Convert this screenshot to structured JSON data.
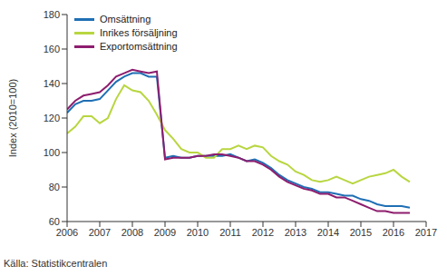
{
  "chart_data": {
    "type": "line",
    "y_label": "Index (2010=100)",
    "source": "Källa: Statistikcentralen",
    "x": [
      2006.0,
      2006.25,
      2006.5,
      2006.75,
      2007.0,
      2007.25,
      2007.5,
      2007.75,
      2008.0,
      2008.25,
      2008.5,
      2008.75,
      2009.0,
      2009.25,
      2009.5,
      2009.75,
      2010.0,
      2010.25,
      2010.5,
      2010.75,
      2011.0,
      2011.25,
      2011.5,
      2011.75,
      2012.0,
      2012.25,
      2012.5,
      2012.75,
      2013.0,
      2013.25,
      2013.5,
      2013.75,
      2014.0,
      2014.25,
      2014.5,
      2014.75,
      2015.0,
      2015.25,
      2015.5,
      2015.75,
      2016.0,
      2016.25,
      2016.5
    ],
    "series": [
      {
        "name": "Omsättning",
        "color": "#1f6fb4",
        "values": [
          123,
          128,
          130,
          130,
          131,
          136,
          141,
          144,
          146,
          146,
          144,
          144,
          97,
          98,
          97,
          97,
          98,
          98,
          98,
          98,
          99,
          97,
          95,
          96,
          94,
          91,
          87,
          84,
          82,
          80,
          79,
          77,
          77,
          76,
          75,
          75,
          73,
          72,
          70,
          69,
          69,
          69,
          68
        ]
      },
      {
        "name": "Inrikes försäljning",
        "color": "#b8d640",
        "values": [
          111,
          115,
          121,
          121,
          117,
          120,
          131,
          139,
          136,
          135,
          130,
          122,
          113,
          108,
          102,
          100,
          100,
          97,
          97,
          102,
          102,
          104,
          102,
          104,
          103,
          98,
          95,
          93,
          89,
          87,
          84,
          83,
          84,
          86,
          84,
          82,
          84,
          86,
          87,
          88,
          90,
          86,
          83
        ]
      },
      {
        "name": "Exportomsättning",
        "color": "#8e1d6e",
        "values": [
          125,
          130,
          133,
          134,
          135,
          139,
          144,
          146,
          148,
          147,
          146,
          147,
          96,
          97,
          97,
          97,
          98,
          98,
          99,
          99,
          98,
          97,
          95,
          95,
          93,
          90,
          86,
          83,
          81,
          79,
          78,
          76,
          76,
          74,
          74,
          72,
          70,
          68,
          66,
          66,
          65,
          65,
          65
        ]
      }
    ],
    "xlim": [
      2006,
      2017
    ],
    "xticks": [
      2006,
      2007,
      2008,
      2009,
      2010,
      2011,
      2012,
      2013,
      2014,
      2015,
      2016,
      2017
    ],
    "ylim": [
      60,
      180
    ],
    "yticks": [
      60,
      80,
      100,
      120,
      140,
      160,
      180
    ],
    "grid": false,
    "legend": "upper left"
  }
}
